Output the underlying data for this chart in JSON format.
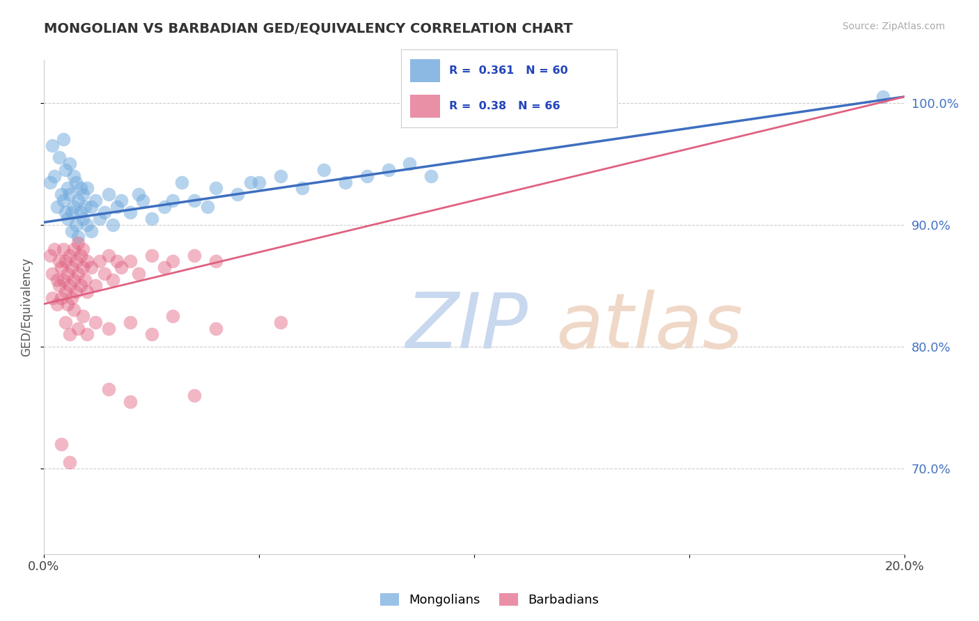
{
  "title": "MONGOLIAN VS BARBADIAN GED/EQUIVALENCY CORRELATION CHART",
  "source_text": "Source: ZipAtlas.com",
  "ylabel": "GED/Equivalency",
  "xlim": [
    0.0,
    20.0
  ],
  "ylim": [
    63.0,
    103.5
  ],
  "yticks": [
    70.0,
    80.0,
    90.0,
    100.0
  ],
  "yticklabels": [
    "70.0%",
    "80.0%",
    "90.0%",
    "100.0%"
  ],
  "blue_R": 0.361,
  "blue_N": 60,
  "pink_R": 0.38,
  "pink_N": 66,
  "blue_color": "#6fa8dc",
  "pink_color": "#e06080",
  "blue_line_color": "#3d6ebf",
  "pink_line_color": "#e06080",
  "tick_color": "#4472c4",
  "mongolian_points": [
    [
      0.15,
      93.5
    ],
    [
      0.2,
      96.5
    ],
    [
      0.25,
      94.0
    ],
    [
      0.3,
      91.5
    ],
    [
      0.35,
      95.5
    ],
    [
      0.4,
      92.5
    ],
    [
      0.45,
      97.0
    ],
    [
      0.45,
      92.0
    ],
    [
      0.5,
      94.5
    ],
    [
      0.5,
      91.0
    ],
    [
      0.55,
      93.0
    ],
    [
      0.55,
      90.5
    ],
    [
      0.6,
      95.0
    ],
    [
      0.6,
      92.5
    ],
    [
      0.65,
      91.0
    ],
    [
      0.65,
      89.5
    ],
    [
      0.7,
      94.0
    ],
    [
      0.7,
      91.5
    ],
    [
      0.75,
      93.5
    ],
    [
      0.75,
      90.0
    ],
    [
      0.8,
      92.0
    ],
    [
      0.8,
      89.0
    ],
    [
      0.85,
      91.0
    ],
    [
      0.85,
      93.0
    ],
    [
      0.9,
      90.5
    ],
    [
      0.9,
      92.5
    ],
    [
      0.95,
      91.5
    ],
    [
      1.0,
      93.0
    ],
    [
      1.0,
      90.0
    ],
    [
      1.1,
      91.5
    ],
    [
      1.1,
      89.5
    ],
    [
      1.2,
      92.0
    ],
    [
      1.3,
      90.5
    ],
    [
      1.4,
      91.0
    ],
    [
      1.5,
      92.5
    ],
    [
      1.6,
      90.0
    ],
    [
      1.7,
      91.5
    ],
    [
      1.8,
      92.0
    ],
    [
      2.0,
      91.0
    ],
    [
      2.2,
      92.5
    ],
    [
      2.5,
      90.5
    ],
    [
      2.8,
      91.5
    ],
    [
      3.0,
      92.0
    ],
    [
      3.2,
      93.5
    ],
    [
      3.5,
      92.0
    ],
    [
      4.0,
      93.0
    ],
    [
      4.5,
      92.5
    ],
    [
      5.0,
      93.5
    ],
    [
      5.5,
      94.0
    ],
    [
      6.0,
      93.0
    ],
    [
      6.5,
      94.5
    ],
    [
      7.0,
      93.5
    ],
    [
      7.5,
      94.0
    ],
    [
      8.0,
      94.5
    ],
    [
      8.5,
      95.0
    ],
    [
      9.0,
      94.0
    ],
    [
      4.8,
      93.5
    ],
    [
      3.8,
      91.5
    ],
    [
      2.3,
      92.0
    ],
    [
      19.5,
      100.5
    ]
  ],
  "barbadian_points": [
    [
      0.15,
      87.5
    ],
    [
      0.2,
      86.0
    ],
    [
      0.2,
      84.0
    ],
    [
      0.25,
      88.0
    ],
    [
      0.3,
      85.5
    ],
    [
      0.3,
      83.5
    ],
    [
      0.35,
      87.0
    ],
    [
      0.35,
      85.0
    ],
    [
      0.4,
      86.5
    ],
    [
      0.4,
      84.0
    ],
    [
      0.45,
      88.0
    ],
    [
      0.45,
      85.5
    ],
    [
      0.5,
      87.0
    ],
    [
      0.5,
      84.5
    ],
    [
      0.55,
      86.0
    ],
    [
      0.55,
      83.5
    ],
    [
      0.6,
      87.5
    ],
    [
      0.6,
      85.0
    ],
    [
      0.65,
      86.5
    ],
    [
      0.65,
      84.0
    ],
    [
      0.7,
      88.0
    ],
    [
      0.7,
      85.5
    ],
    [
      0.75,
      87.0
    ],
    [
      0.75,
      84.5
    ],
    [
      0.8,
      88.5
    ],
    [
      0.8,
      86.0
    ],
    [
      0.85,
      87.5
    ],
    [
      0.85,
      85.0
    ],
    [
      0.9,
      88.0
    ],
    [
      0.9,
      86.5
    ],
    [
      0.95,
      85.5
    ],
    [
      1.0,
      87.0
    ],
    [
      1.0,
      84.5
    ],
    [
      1.1,
      86.5
    ],
    [
      1.2,
      85.0
    ],
    [
      1.3,
      87.0
    ],
    [
      1.4,
      86.0
    ],
    [
      1.5,
      87.5
    ],
    [
      1.6,
      85.5
    ],
    [
      1.7,
      87.0
    ],
    [
      1.8,
      86.5
    ],
    [
      2.0,
      87.0
    ],
    [
      2.2,
      86.0
    ],
    [
      2.5,
      87.5
    ],
    [
      2.8,
      86.5
    ],
    [
      3.0,
      87.0
    ],
    [
      3.5,
      87.5
    ],
    [
      4.0,
      87.0
    ],
    [
      0.5,
      82.0
    ],
    [
      0.6,
      81.0
    ],
    [
      0.7,
      83.0
    ],
    [
      0.8,
      81.5
    ],
    [
      0.9,
      82.5
    ],
    [
      1.0,
      81.0
    ],
    [
      1.2,
      82.0
    ],
    [
      1.5,
      81.5
    ],
    [
      2.0,
      82.0
    ],
    [
      2.5,
      81.0
    ],
    [
      3.0,
      82.5
    ],
    [
      4.0,
      81.5
    ],
    [
      5.5,
      82.0
    ],
    [
      1.5,
      76.5
    ],
    [
      2.0,
      75.5
    ],
    [
      3.5,
      76.0
    ],
    [
      0.4,
      72.0
    ],
    [
      0.6,
      70.5
    ]
  ]
}
